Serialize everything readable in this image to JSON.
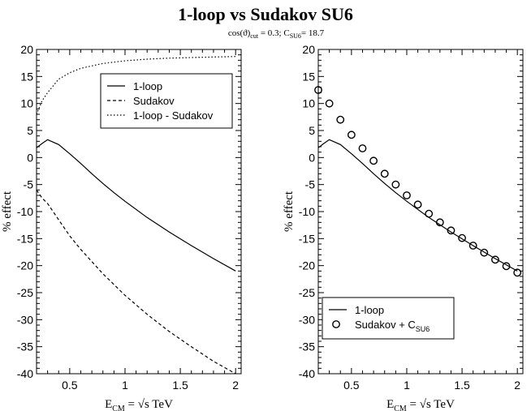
{
  "figure": {
    "title": "1-loop vs Sudakov SU6",
    "subtitle": {
      "cos": "cos(ϑ)",
      "cos_sub": "cut",
      "cos_val": " = 0.3;  C",
      "c_sub": "SU6",
      "c_val": "= 18.7"
    }
  },
  "chart_data": [
    {
      "type": "line",
      "xlabel": {
        "main": "E",
        "sub": "CM",
        "rest": " = √s TeV"
      },
      "ylabel": "% effect",
      "xlim": [
        0.2,
        2.05
      ],
      "ylim": [
        -40,
        20
      ],
      "xticks": [
        0.5,
        1,
        1.5,
        2
      ],
      "xtick_labels": [
        "0.5",
        "1",
        "1.5",
        "2"
      ],
      "yticks": [
        -40,
        -35,
        -30,
        -25,
        -20,
        -15,
        -10,
        -5,
        0,
        5,
        10,
        15,
        20
      ],
      "ytick_labels": [
        "-40",
        "-35",
        "-30",
        "-25",
        "-20",
        "-15",
        "-10",
        "-5",
        "0",
        "5",
        "10",
        "15",
        "20"
      ],
      "grid": false,
      "legend_position": "top-right",
      "series": [
        {
          "name": "1-loop",
          "style": "solid",
          "x": [
            0.2,
            0.25,
            0.3,
            0.4,
            0.5,
            0.6,
            0.7,
            0.8,
            0.9,
            1.0,
            1.2,
            1.4,
            1.6,
            1.8,
            2.0
          ],
          "y": [
            1.8,
            2.6,
            3.3,
            2.4,
            0.7,
            -1.1,
            -3.0,
            -4.8,
            -6.5,
            -8.1,
            -11.1,
            -13.8,
            -16.3,
            -18.7,
            -21.0
          ]
        },
        {
          "name": "Sudakov",
          "style": "dashed",
          "x": [
            0.2,
            0.25,
            0.3,
            0.4,
            0.5,
            0.6,
            0.8,
            1.0,
            1.2,
            1.4,
            1.6,
            1.8,
            2.0
          ],
          "y": [
            -6.0,
            -7.5,
            -8.5,
            -11.5,
            -14.5,
            -17.0,
            -21.5,
            -25.5,
            -29.0,
            -32.2,
            -35.0,
            -37.7,
            -40.0
          ]
        },
        {
          "name": "1-loop - Sudakov",
          "style": "dotted",
          "x": [
            0.2,
            0.25,
            0.3,
            0.4,
            0.5,
            0.6,
            0.8,
            1.0,
            1.2,
            1.4,
            1.6,
            1.8,
            2.0
          ],
          "y": [
            8.0,
            10.5,
            12.0,
            14.5,
            15.7,
            16.5,
            17.4,
            17.9,
            18.2,
            18.4,
            18.5,
            18.6,
            18.7
          ]
        }
      ]
    },
    {
      "type": "line",
      "xlabel": {
        "main": "E",
        "sub": "CM",
        "rest": " = √s TeV"
      },
      "ylabel": "% effect",
      "xlim": [
        0.2,
        2.05
      ],
      "ylim": [
        -40,
        20
      ],
      "xticks": [
        0.5,
        1,
        1.5,
        2
      ],
      "xtick_labels": [
        "0.5",
        "1",
        "1.5",
        "2"
      ],
      "yticks": [
        -40,
        -35,
        -30,
        -25,
        -20,
        -15,
        -10,
        -5,
        0,
        5,
        10,
        15,
        20
      ],
      "ytick_labels": [
        "-40",
        "-35",
        "-30",
        "-25",
        "-20",
        "-15",
        "-10",
        "-5",
        "0",
        "5",
        "10",
        "15",
        "20"
      ],
      "grid": false,
      "legend_position": "bottom-left",
      "series": [
        {
          "name": "1-loop",
          "style": "solid",
          "x": [
            0.2,
            0.25,
            0.3,
            0.4,
            0.5,
            0.6,
            0.7,
            0.8,
            0.9,
            1.0,
            1.2,
            1.4,
            1.6,
            1.8,
            2.0
          ],
          "y": [
            1.8,
            2.6,
            3.3,
            2.4,
            0.7,
            -1.1,
            -3.0,
            -4.8,
            -6.5,
            -8.1,
            -11.1,
            -13.8,
            -16.3,
            -18.7,
            -21.0
          ]
        },
        {
          "name": "Sudakov + C",
          "name_sub": "SU6",
          "style": "circles",
          "x": [
            0.2,
            0.3,
            0.4,
            0.5,
            0.6,
            0.7,
            0.8,
            0.9,
            1.0,
            1.1,
            1.2,
            1.3,
            1.4,
            1.5,
            1.6,
            1.7,
            1.8,
            1.9,
            2.0
          ],
          "y": [
            12.5,
            10.0,
            7.0,
            4.2,
            1.7,
            -0.6,
            -3.0,
            -5.0,
            -7.0,
            -8.7,
            -10.4,
            -12.0,
            -13.5,
            -14.9,
            -16.3,
            -17.6,
            -18.9,
            -20.1,
            -21.3
          ]
        }
      ]
    }
  ]
}
